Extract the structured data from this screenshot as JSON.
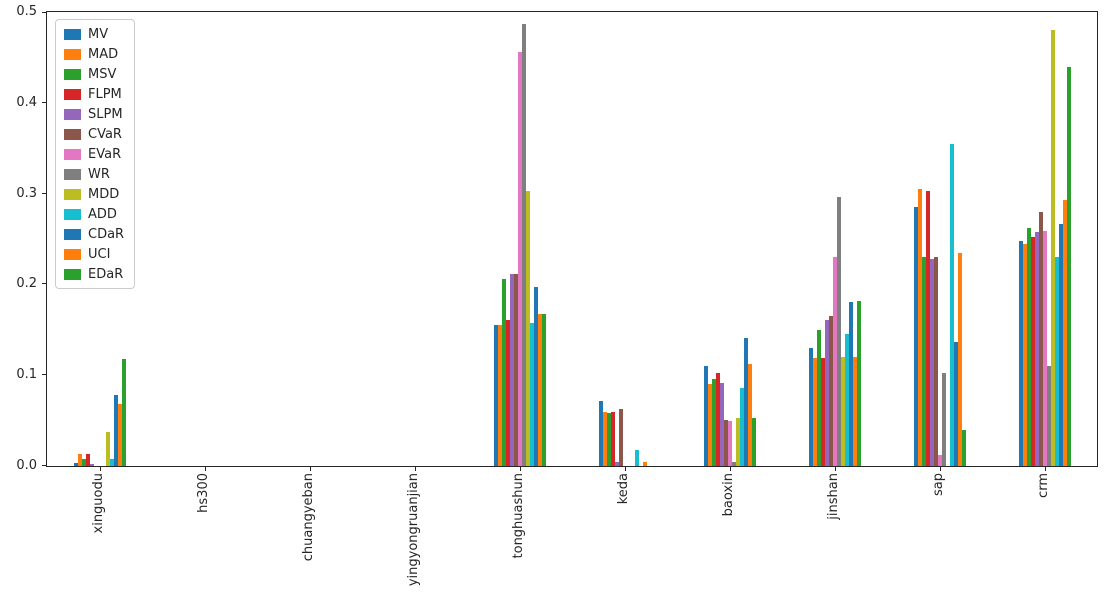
{
  "chart_data": {
    "type": "bar",
    "title": "",
    "xlabel": "",
    "ylabel": "",
    "ylim": [
      0,
      0.5
    ],
    "yticks": [
      0.0,
      0.1,
      0.2,
      0.3,
      0.4,
      0.5
    ],
    "grid": false,
    "legend_position": "upper-left",
    "categories": [
      "xinguodu",
      "hs300",
      "chuangyeban",
      "yingyongruanjian",
      "tonghuashun",
      "keda",
      "baoxin",
      "jinshan",
      "sap",
      "crm"
    ],
    "series": [
      {
        "name": "MV",
        "color": "#1f77b4",
        "values": [
          0.003,
          0,
          0,
          0,
          0.155,
          0.072,
          0.11,
          0.13,
          0.285,
          0.248
        ]
      },
      {
        "name": "MAD",
        "color": "#ff7f0e",
        "values": [
          0.013,
          0,
          0,
          0,
          0.155,
          0.06,
          0.09,
          0.119,
          0.305,
          0.245
        ]
      },
      {
        "name": "MSV",
        "color": "#2ca02c",
        "values": [
          0.008,
          0,
          0,
          0,
          0.206,
          0.058,
          0.096,
          0.15,
          0.23,
          0.262
        ]
      },
      {
        "name": "FLPM",
        "color": "#d62728",
        "values": [
          0.013,
          0,
          0,
          0,
          0.161,
          0.06,
          0.103,
          0.119,
          0.303,
          0.252
        ]
      },
      {
        "name": "SLPM",
        "color": "#9467bd",
        "values": [
          0.002,
          0,
          0,
          0,
          0.211,
          0.004,
          0.091,
          0.161,
          0.228,
          0.258
        ]
      },
      {
        "name": "CVaR",
        "color": "#8c564b",
        "values": [
          0,
          0,
          0,
          0,
          0.211,
          0.063,
          0.051,
          0.165,
          0.23,
          0.28
        ]
      },
      {
        "name": "EVaR",
        "color": "#e377c2",
        "values": [
          0,
          0,
          0,
          0,
          0.456,
          0,
          0.05,
          0.23,
          0.012,
          0.259
        ]
      },
      {
        "name": "WR",
        "color": "#7f7f7f",
        "values": [
          0,
          0,
          0,
          0,
          0.487,
          0,
          0.005,
          0.296,
          0.103,
          0.11
        ]
      },
      {
        "name": "MDD",
        "color": "#bcbd22",
        "values": [
          0.037,
          0,
          0,
          0,
          0.303,
          0,
          0.053,
          0.12,
          0,
          0.48
        ]
      },
      {
        "name": "ADD",
        "color": "#17becf",
        "values": [
          0.008,
          0,
          0,
          0,
          0.158,
          0.018,
          0.086,
          0.145,
          0.355,
          0.23
        ]
      },
      {
        "name": "CDaR",
        "color": "#1f77b4",
        "values": [
          0.078,
          0,
          0,
          0,
          0.197,
          0,
          0.141,
          0.181,
          0.137,
          0.267
        ]
      },
      {
        "name": "UCI",
        "color": "#ff7f0e",
        "values": [
          0.068,
          0,
          0,
          0,
          0.168,
          0.005,
          0.112,
          0.12,
          0.235,
          0.293
        ]
      },
      {
        "name": "EDaR",
        "color": "#2ca02c",
        "values": [
          0.118,
          0,
          0,
          0,
          0.168,
          0,
          0.053,
          0.182,
          0.04,
          0.44
        ]
      }
    ]
  }
}
